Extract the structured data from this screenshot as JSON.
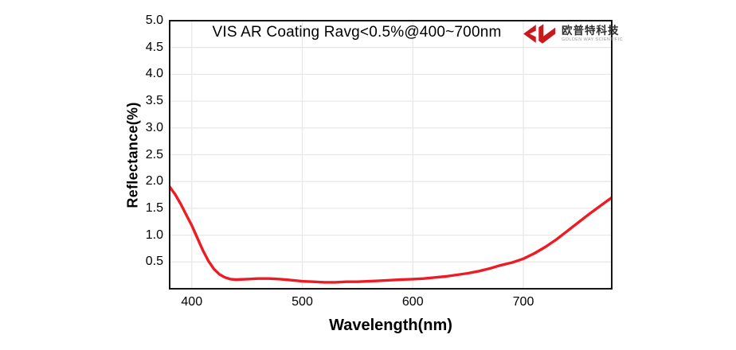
{
  "logo": {
    "cn": "欧普特科技",
    "en": "GOLDEN WAY SCIENTIFIC",
    "brand_red": "#c9191f",
    "text_dark": "#2f2f2f",
    "text_gray": "#9a9a9a"
  },
  "chart_data": {
    "type": "line",
    "title": "VIS AR Coating Ravg<0.5%@400~700nm",
    "xlabel": "Wavelength(nm)",
    "ylabel": "Reflectance(%)",
    "xlim": [
      380,
      780
    ],
    "ylim": [
      0,
      5
    ],
    "x_ticks": [
      400,
      500,
      600,
      700
    ],
    "y_ticks": [
      0.5,
      1.0,
      1.5,
      2.0,
      2.5,
      3.0,
      3.5,
      4.0,
      4.5,
      5.0
    ],
    "grid": true,
    "legend": "none",
    "line_color": "#ed1c24",
    "grid_color": "#e8e8e8",
    "border_color": "#161616",
    "watermark_color": "#ec1c24",
    "series": [
      {
        "name": "Reflectance",
        "x": [
          380,
          385,
          390,
          395,
          400,
          405,
          410,
          415,
          420,
          425,
          430,
          435,
          440,
          450,
          460,
          470,
          480,
          490,
          500,
          510,
          520,
          530,
          540,
          550,
          560,
          570,
          580,
          590,
          600,
          610,
          620,
          630,
          640,
          650,
          660,
          670,
          680,
          690,
          700,
          710,
          720,
          730,
          740,
          750,
          760,
          770,
          780
        ],
        "y": [
          1.9,
          1.76,
          1.58,
          1.38,
          1.18,
          0.95,
          0.72,
          0.52,
          0.37,
          0.27,
          0.21,
          0.18,
          0.17,
          0.18,
          0.19,
          0.19,
          0.18,
          0.16,
          0.14,
          0.13,
          0.12,
          0.12,
          0.13,
          0.13,
          0.14,
          0.15,
          0.16,
          0.17,
          0.18,
          0.19,
          0.21,
          0.23,
          0.26,
          0.29,
          0.33,
          0.38,
          0.44,
          0.49,
          0.56,
          0.66,
          0.78,
          0.92,
          1.08,
          1.24,
          1.4,
          1.55,
          1.7
        ]
      }
    ]
  }
}
